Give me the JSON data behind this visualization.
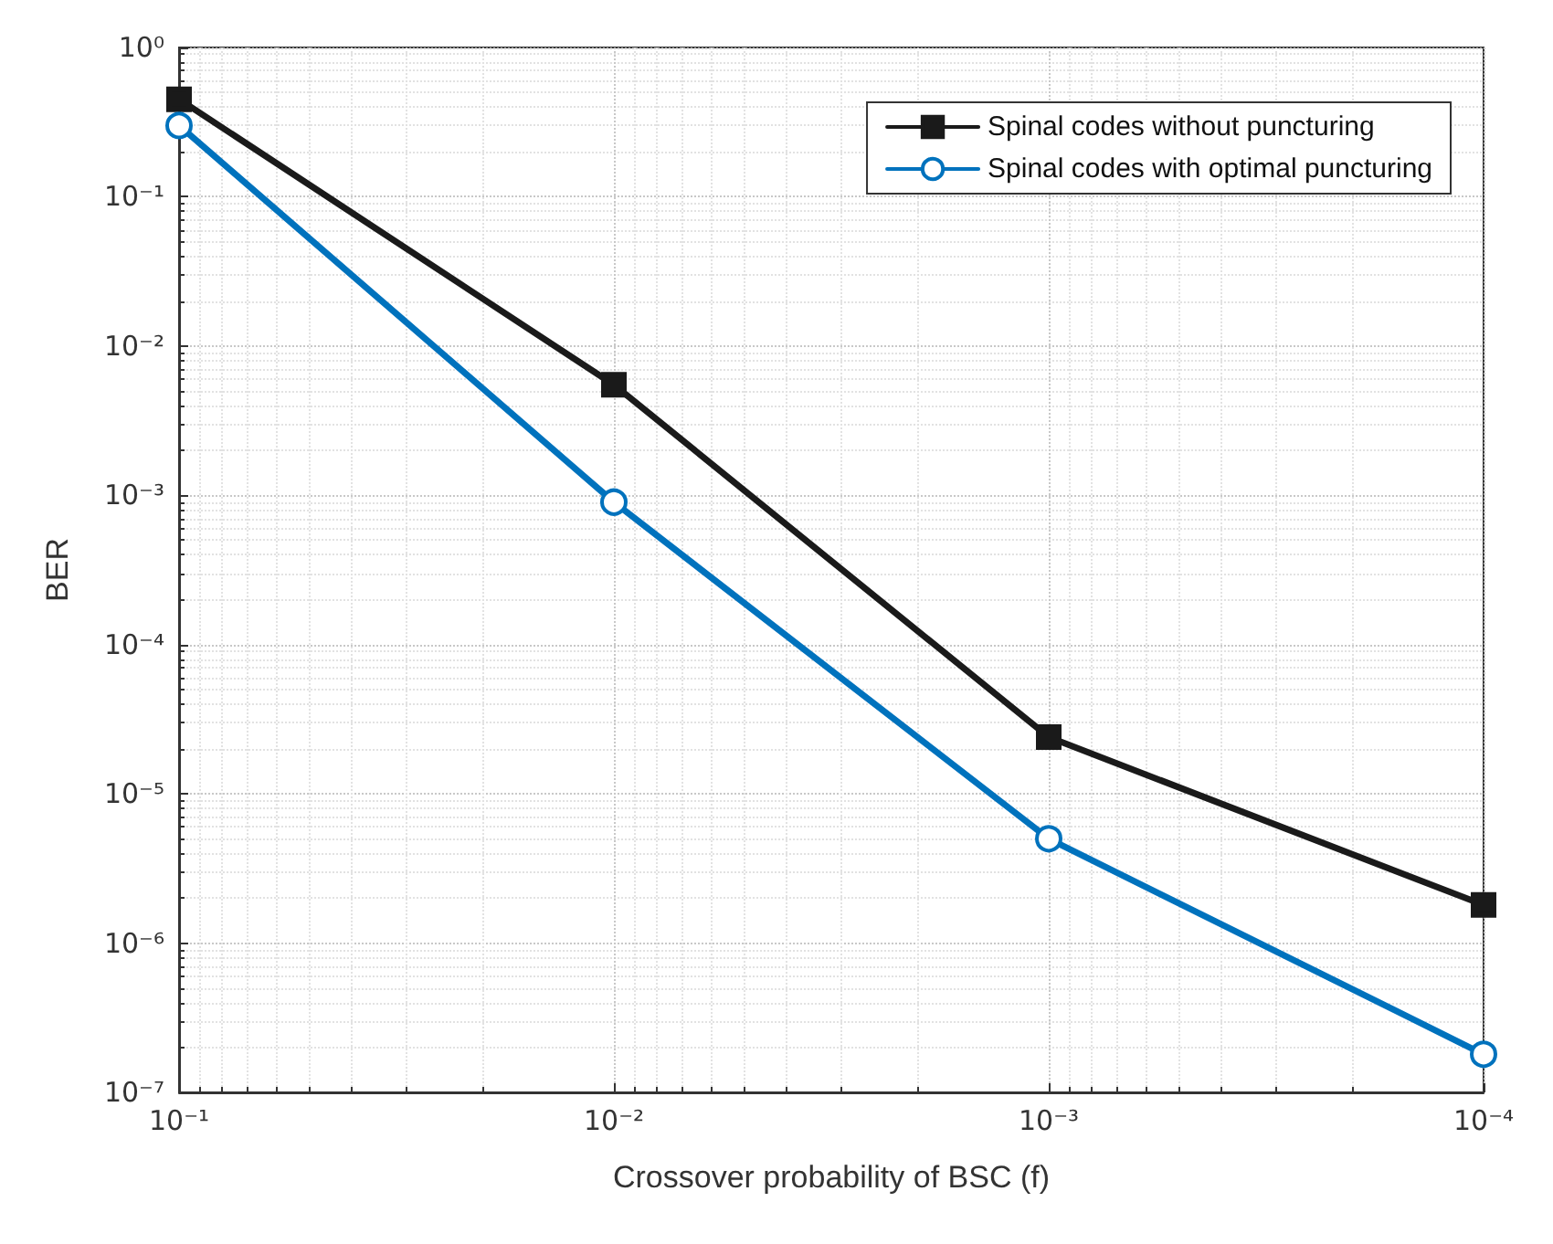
{
  "chart_data": {
    "type": "line",
    "xlabel": "Crossover probability of BSC (f)",
    "ylabel": "BER",
    "x": [
      0.1,
      0.01,
      0.001,
      0.0001
    ],
    "series": [
      {
        "name": "Spinal codes without puncturing",
        "color": "#1a1a1a",
        "marker": "square",
        "values": [
          0.45,
          0.0055,
          2.4e-05,
          1.8e-06
        ]
      },
      {
        "name": "Spinal codes with optimal puncturing",
        "color": "#0072bd",
        "marker": "circle",
        "values": [
          0.3,
          0.0009,
          5e-06,
          1.8e-07
        ]
      }
    ],
    "log": "xy",
    "xlim": [
      0.1,
      0.0001
    ],
    "ylim": [
      1e-07,
      1
    ],
    "xticks": [
      {
        "value": 0.1,
        "label": "10⁻¹"
      },
      {
        "value": 0.01,
        "label": "10⁻²"
      },
      {
        "value": 0.001,
        "label": "10⁻³"
      },
      {
        "value": 0.0001,
        "label": "10⁻⁴"
      }
    ],
    "yticks": [
      {
        "value": 1e-07,
        "label": "10⁻⁷"
      },
      {
        "value": 1e-06,
        "label": "10⁻⁶"
      },
      {
        "value": 1e-05,
        "label": "10⁻⁵"
      },
      {
        "value": 0.0001,
        "label": "10⁻⁴"
      },
      {
        "value": 0.001,
        "label": "10⁻³"
      },
      {
        "value": 0.01,
        "label": "10⁻²"
      },
      {
        "value": 0.1,
        "label": "10⁻¹"
      },
      {
        "value": 1,
        "label": "10⁰"
      }
    ],
    "grid": true,
    "legend": "top right",
    "line_style": "solid"
  }
}
